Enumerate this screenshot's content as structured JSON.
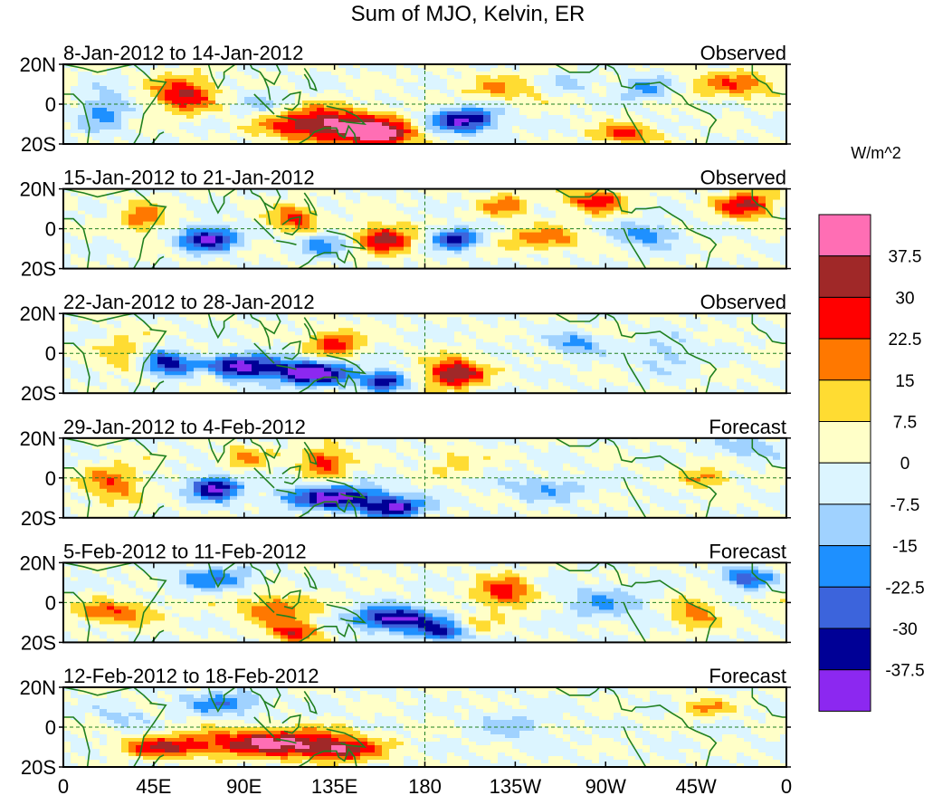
{
  "chart_data": {
    "type": "heatmap",
    "title": "Sum of MJO, Kelvin, ER",
    "units_label": "W/m^2",
    "y_tick_labels": [
      "20N",
      "0",
      "20S"
    ],
    "x_tick_labels": [
      "0",
      "45E",
      "90E",
      "135E",
      "180",
      "135W",
      "90W",
      "45W",
      "0"
    ],
    "x_range_deg": [
      0,
      360
    ],
    "y_range_deg": [
      -20,
      20
    ],
    "colorbar": {
      "levels": [
        "37.5",
        "30",
        "22.5",
        "15",
        "7.5",
        "0",
        "-7.5",
        "-15",
        "-22.5",
        "-30",
        "-37.5"
      ],
      "colors": [
        "#ff6eb4",
        "#a02828",
        "#ff0000",
        "#ff7800",
        "#ffdc32",
        "#ffffc8",
        "#dcf5ff",
        "#a0d2ff",
        "#1e90ff",
        "#3c64dc",
        "#000096",
        "#8c28f0"
      ]
    },
    "panels": [
      {
        "label": "8-Jan-2012 to 14-Jan-2012",
        "status": "Observed",
        "anomalies": [
          {
            "lon": 60,
            "lat": 5,
            "rx": 15,
            "ry": 9,
            "amp": 32
          },
          {
            "lon": 20,
            "lat": -3,
            "rx": 12,
            "ry": 10,
            "amp": -18
          },
          {
            "lon": 130,
            "lat": -10,
            "rx": 28,
            "ry": 8,
            "amp": 42
          },
          {
            "lon": 158,
            "lat": -15,
            "rx": 16,
            "ry": 6,
            "amp": 42
          },
          {
            "lon": 200,
            "lat": -8,
            "rx": 16,
            "ry": 6,
            "amp": -40
          },
          {
            "lon": 220,
            "lat": 8,
            "rx": 20,
            "ry": 7,
            "amp": 15
          },
          {
            "lon": 280,
            "lat": -15,
            "rx": 15,
            "ry": 5,
            "amp": 26
          },
          {
            "lon": 335,
            "lat": 10,
            "rx": 22,
            "ry": 7,
            "amp": 20
          },
          {
            "lon": 290,
            "lat": 8,
            "rx": 13,
            "ry": 6,
            "amp": -16
          },
          {
            "lon": 100,
            "lat": 0,
            "rx": 15,
            "ry": 7,
            "amp": -10
          },
          {
            "lon": 250,
            "lat": 10,
            "rx": 14,
            "ry": 5,
            "amp": -10
          }
        ]
      },
      {
        "label": "15-Jan-2012 to 21-Jan-2012",
        "status": "Observed",
        "anomalies": [
          {
            "lon": 72,
            "lat": -5,
            "rx": 14,
            "ry": 6,
            "amp": -40
          },
          {
            "lon": 40,
            "lat": 5,
            "rx": 12,
            "ry": 8,
            "amp": 20
          },
          {
            "lon": 115,
            "lat": 5,
            "rx": 12,
            "ry": 7,
            "amp": 25
          },
          {
            "lon": 160,
            "lat": -5,
            "rx": 14,
            "ry": 7,
            "amp": 35
          },
          {
            "lon": 195,
            "lat": -5,
            "rx": 12,
            "ry": 5,
            "amp": -34
          },
          {
            "lon": 220,
            "lat": 12,
            "rx": 12,
            "ry": 6,
            "amp": 18
          },
          {
            "lon": 265,
            "lat": 14,
            "rx": 16,
            "ry": 6,
            "amp": 26
          },
          {
            "lon": 340,
            "lat": 12,
            "rx": 14,
            "ry": 7,
            "amp": 32
          },
          {
            "lon": 240,
            "lat": -5,
            "rx": 20,
            "ry": 6,
            "amp": 20
          },
          {
            "lon": 290,
            "lat": -3,
            "rx": 15,
            "ry": 6,
            "amp": -20
          },
          {
            "lon": 130,
            "lat": -8,
            "rx": 14,
            "ry": 6,
            "amp": -18
          }
        ]
      },
      {
        "label": "22-Jan-2012 to 28-Jan-2012",
        "status": "Observed",
        "anomalies": [
          {
            "lon": 85,
            "lat": -7,
            "rx": 25,
            "ry": 6,
            "amp": -42
          },
          {
            "lon": 125,
            "lat": -10,
            "rx": 20,
            "ry": 6,
            "amp": -42
          },
          {
            "lon": 50,
            "lat": -5,
            "rx": 10,
            "ry": 6,
            "amp": -30
          },
          {
            "lon": 160,
            "lat": -14,
            "rx": 10,
            "ry": 5,
            "amp": -36
          },
          {
            "lon": 135,
            "lat": 5,
            "rx": 14,
            "ry": 7,
            "amp": 25
          },
          {
            "lon": 195,
            "lat": -10,
            "rx": 14,
            "ry": 7,
            "amp": 40
          },
          {
            "lon": 72,
            "lat": -10,
            "rx": 8,
            "ry": 5,
            "amp": 25
          },
          {
            "lon": 30,
            "lat": 0,
            "rx": 12,
            "ry": 10,
            "amp": 12
          },
          {
            "lon": 255,
            "lat": 5,
            "rx": 12,
            "ry": 5,
            "amp": -20
          },
          {
            "lon": 300,
            "lat": 0,
            "rx": 15,
            "ry": 8,
            "amp": -12
          }
        ]
      },
      {
        "label": "29-Jan-2012 to 4-Feb-2012",
        "status": "Forecast",
        "anomalies": [
          {
            "lon": 75,
            "lat": -5,
            "rx": 12,
            "ry": 6,
            "amp": -42
          },
          {
            "lon": 135,
            "lat": -10,
            "rx": 25,
            "ry": 6,
            "amp": -40
          },
          {
            "lon": 165,
            "lat": -15,
            "rx": 15,
            "ry": 5,
            "amp": -36
          },
          {
            "lon": 130,
            "lat": 8,
            "rx": 12,
            "ry": 7,
            "amp": 28
          },
          {
            "lon": 25,
            "lat": -3,
            "rx": 15,
            "ry": 10,
            "amp": 20
          },
          {
            "lon": 90,
            "lat": 10,
            "rx": 12,
            "ry": 6,
            "amp": 15
          },
          {
            "lon": 195,
            "lat": 8,
            "rx": 12,
            "ry": 6,
            "amp": 12
          },
          {
            "lon": 320,
            "lat": 0,
            "rx": 12,
            "ry": 5,
            "amp": 20
          },
          {
            "lon": 240,
            "lat": -5,
            "rx": 20,
            "ry": 6,
            "amp": -15
          },
          {
            "lon": 340,
            "lat": 15,
            "rx": 15,
            "ry": 5,
            "amp": -15
          }
        ]
      },
      {
        "label": "5-Feb-2012 to 11-Feb-2012",
        "status": "Forecast",
        "anomalies": [
          {
            "lon": 165,
            "lat": -8,
            "rx": 20,
            "ry": 6,
            "amp": -42
          },
          {
            "lon": 190,
            "lat": -15,
            "rx": 14,
            "ry": 5,
            "amp": -30
          },
          {
            "lon": 25,
            "lat": -5,
            "rx": 20,
            "ry": 6,
            "amp": 22
          },
          {
            "lon": 105,
            "lat": -3,
            "rx": 20,
            "ry": 7,
            "amp": 22
          },
          {
            "lon": 115,
            "lat": -15,
            "rx": 12,
            "ry": 5,
            "amp": 30
          },
          {
            "lon": 220,
            "lat": 5,
            "rx": 14,
            "ry": 8,
            "amp": 28
          },
          {
            "lon": 315,
            "lat": -5,
            "rx": 12,
            "ry": 8,
            "amp": 20
          },
          {
            "lon": 75,
            "lat": 12,
            "rx": 20,
            "ry": 6,
            "amp": -20
          },
          {
            "lon": 270,
            "lat": 0,
            "rx": 20,
            "ry": 8,
            "amp": -15
          },
          {
            "lon": 340,
            "lat": 12,
            "rx": 12,
            "ry": 5,
            "amp": -30
          },
          {
            "lon": 205,
            "lat": -12,
            "rx": 12,
            "ry": 5,
            "amp": 12
          }
        ]
      },
      {
        "label": "12-Feb-2012 to 18-Feb-2012",
        "status": "Forecast",
        "anomalies": [
          {
            "lon": 105,
            "lat": -8,
            "rx": 38,
            "ry": 7,
            "amp": 40
          },
          {
            "lon": 50,
            "lat": -10,
            "rx": 20,
            "ry": 5,
            "amp": 28
          },
          {
            "lon": 140,
            "lat": -12,
            "rx": 18,
            "ry": 5,
            "amp": 26
          },
          {
            "lon": 80,
            "lat": 12,
            "rx": 20,
            "ry": 6,
            "amp": -20
          },
          {
            "lon": 320,
            "lat": 10,
            "rx": 12,
            "ry": 5,
            "amp": 15
          },
          {
            "lon": 30,
            "lat": 5,
            "rx": 12,
            "ry": 6,
            "amp": -10
          },
          {
            "lon": 225,
            "lat": 0,
            "rx": 20,
            "ry": 8,
            "amp": -10
          }
        ]
      }
    ]
  }
}
